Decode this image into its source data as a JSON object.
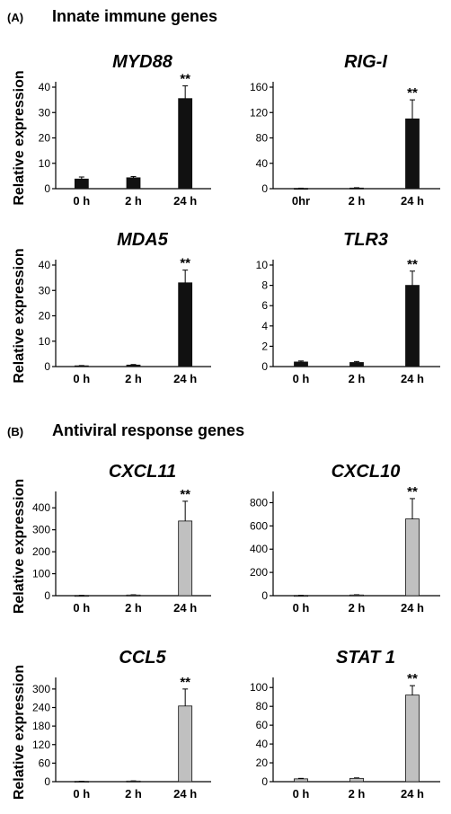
{
  "sections": [
    {
      "label": "(A)",
      "title": "Innate immune genes"
    },
    {
      "label": "(B)",
      "title": "Antiviral response genes"
    }
  ],
  "chart_data": [
    {
      "type": "bar",
      "title": "MYD88",
      "ylabel": "Relative expression",
      "categories": [
        "0 h",
        "2 h",
        "24 h"
      ],
      "values": [
        3.8,
        4.3,
        35.5
      ],
      "errors": [
        0.8,
        0.5,
        5.0
      ],
      "ylim": [
        0,
        40
      ],
      "yticks": [
        0,
        10,
        20,
        30,
        40
      ],
      "significance": [
        "",
        "",
        "**"
      ],
      "bar_color": "#111111"
    },
    {
      "type": "bar",
      "title": "RIG-I",
      "ylabel": "",
      "categories": [
        "0hr",
        "2 h",
        "24 h"
      ],
      "values": [
        0.5,
        1.0,
        110
      ],
      "errors": [
        0.3,
        0.5,
        30
      ],
      "ylim": [
        0,
        160
      ],
      "yticks": [
        0,
        40,
        80,
        120,
        160
      ],
      "significance": [
        "",
        "",
        "**"
      ],
      "bar_color": "#111111"
    },
    {
      "type": "bar",
      "title": "MDA5",
      "ylabel": "Relative expression",
      "categories": [
        "0 h",
        "2 h",
        "24 h"
      ],
      "values": [
        0.3,
        0.6,
        33
      ],
      "errors": [
        0.1,
        0.2,
        5.0
      ],
      "ylim": [
        0,
        40
      ],
      "yticks": [
        0,
        10,
        20,
        30,
        40
      ],
      "significance": [
        "",
        "",
        "**"
      ],
      "bar_color": "#111111"
    },
    {
      "type": "bar",
      "title": "TLR3",
      "ylabel": "",
      "categories": [
        "0 h",
        "2 h",
        "24 h"
      ],
      "values": [
        0.45,
        0.4,
        8.0
      ],
      "errors": [
        0.1,
        0.1,
        1.4
      ],
      "ylim": [
        0,
        10
      ],
      "yticks": [
        0,
        2,
        4,
        6,
        8,
        10
      ],
      "significance": [
        "",
        "",
        "**"
      ],
      "bar_color": "#111111"
    },
    {
      "type": "bar",
      "title": "CXCL11",
      "ylabel": "Relative expression",
      "categories": [
        "0 h",
        "2 h",
        "24 h"
      ],
      "values": [
        1,
        3,
        340
      ],
      "errors": [
        0.5,
        1,
        90
      ],
      "ylim": [
        0,
        450
      ],
      "yticks": [
        0,
        100,
        200,
        300,
        400
      ],
      "significance": [
        "",
        "",
        "**"
      ],
      "bar_color": "#c0c0c0"
    },
    {
      "type": "bar",
      "title": "CXCL10",
      "ylabel": "",
      "categories": [
        "0 h",
        "2 h",
        "24 h"
      ],
      "values": [
        2,
        6,
        660
      ],
      "errors": [
        1,
        2,
        175
      ],
      "ylim": [
        0,
        850
      ],
      "yticks": [
        0,
        200,
        400,
        600,
        800
      ],
      "significance": [
        "",
        "",
        "**"
      ],
      "bar_color": "#c0c0c0"
    },
    {
      "type": "bar",
      "title": "CCL5",
      "ylabel": "Relative expression",
      "categories": [
        "0 h",
        "2 h",
        "24 h"
      ],
      "values": [
        1,
        2,
        245
      ],
      "errors": [
        0.5,
        0.5,
        55
      ],
      "ylim": [
        0,
        320
      ],
      "yticks": [
        0,
        60,
        120,
        180,
        240,
        300
      ],
      "significance": [
        "",
        "",
        "**"
      ],
      "bar_color": "#c0c0c0"
    },
    {
      "type": "bar",
      "title": "STAT 1",
      "ylabel": "",
      "categories": [
        "0 h",
        "2 h",
        "24 h"
      ],
      "values": [
        3.0,
        3.5,
        92
      ],
      "errors": [
        0.5,
        0.5,
        10
      ],
      "ylim": [
        0,
        105
      ],
      "yticks": [
        0,
        20,
        40,
        60,
        80,
        100
      ],
      "significance": [
        "",
        "",
        "**"
      ],
      "bar_color": "#c0c0c0"
    }
  ]
}
